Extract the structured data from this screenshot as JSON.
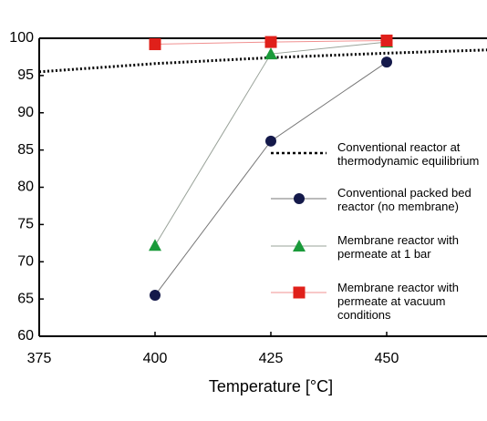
{
  "chart_data": {
    "type": "line",
    "x_label": "Temperature [°C]",
    "xlim": [
      375,
      475
    ],
    "xticks": [
      375,
      400,
      425,
      450
    ],
    "ylim": [
      60,
      100
    ],
    "yticks": [
      60,
      65,
      70,
      75,
      80,
      85,
      90,
      95,
      100
    ],
    "series": [
      {
        "name": "Conventional reactor at\nthermodynamic equilibrium",
        "color": "#000000",
        "line_style": "dotted",
        "marker": "none",
        "x": [
          375,
          400,
          425,
          450,
          475
        ],
        "values": [
          95.5,
          96.6,
          97.4,
          98.0,
          98.5
        ]
      },
      {
        "name": "Conventional packed bed\nreactor (no membrane)",
        "color": "#14194a",
        "line_color": "#777777",
        "line_style": "solid",
        "marker": "circle",
        "x": [
          400,
          425,
          450
        ],
        "values": [
          65.5,
          86.2,
          96.8
        ]
      },
      {
        "name": "Membrane reactor with\npermeate at 1 bar",
        "color": "#1a9a3a",
        "line_color": "#9aa39a",
        "line_style": "solid",
        "marker": "triangle",
        "x": [
          400,
          425,
          450
        ],
        "values": [
          72.2,
          97.9,
          99.5
        ]
      },
      {
        "name": "Membrane reactor with\npermeate at vacuum\nconditions",
        "color": "#e0201a",
        "line_color": "#f09090",
        "line_style": "solid",
        "marker": "square",
        "x": [
          400,
          425,
          450
        ],
        "values": [
          99.2,
          99.5,
          99.7
        ]
      }
    ]
  }
}
